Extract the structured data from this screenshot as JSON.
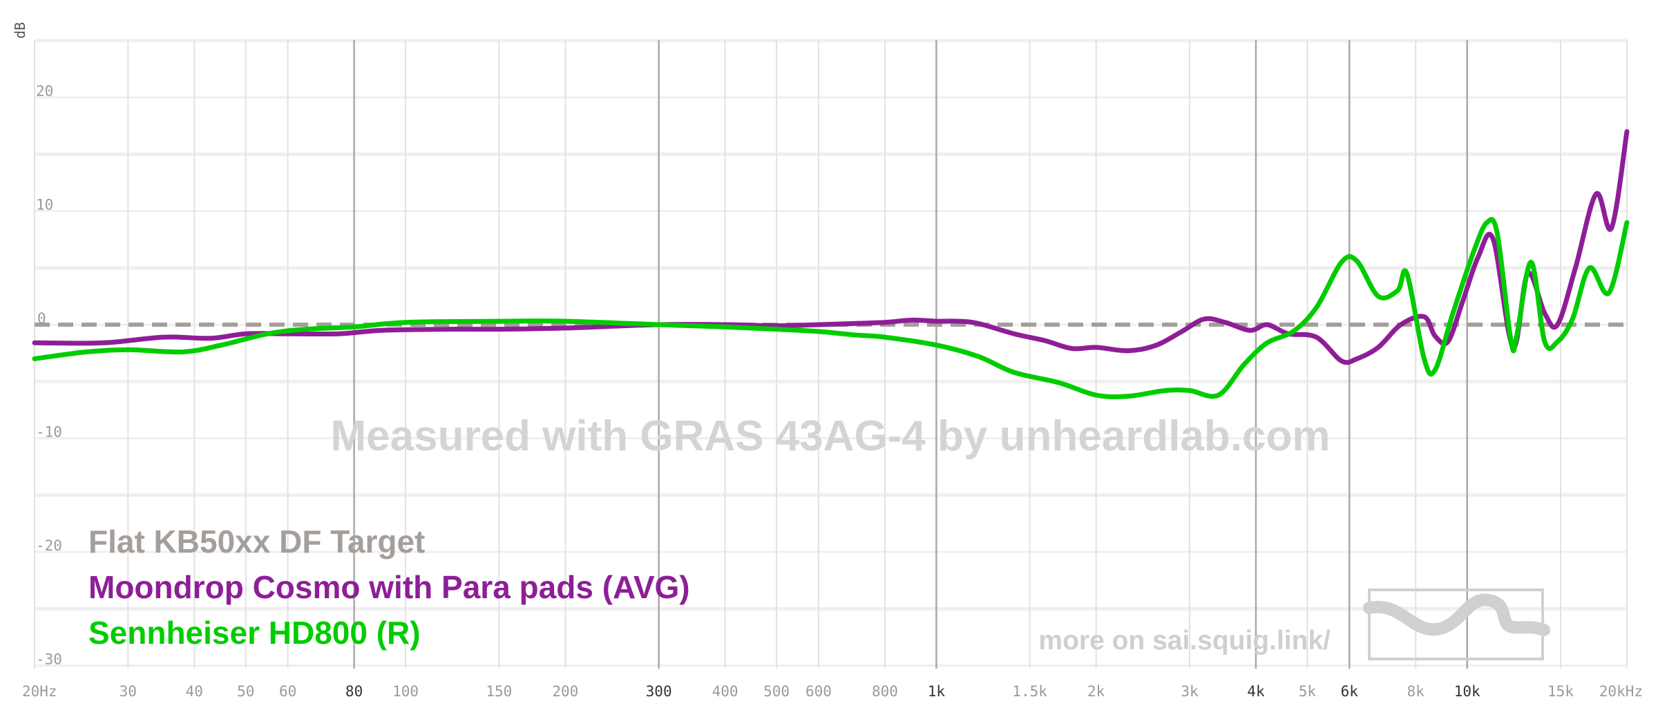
{
  "chart_data": {
    "type": "line",
    "x_scale": "log",
    "xlim": [
      20,
      20000
    ],
    "ylim": [
      -30,
      25
    ],
    "ylabel": "dB",
    "x_ticks": [
      {
        "value": 20,
        "label": "20Hz",
        "major": false
      },
      {
        "value": 30,
        "label": "30",
        "major": false
      },
      {
        "value": 40,
        "label": "40",
        "major": false
      },
      {
        "value": 50,
        "label": "50",
        "major": false
      },
      {
        "value": 60,
        "label": "60",
        "major": false
      },
      {
        "value": 80,
        "label": "80",
        "major": true
      },
      {
        "value": 100,
        "label": "100",
        "major": false
      },
      {
        "value": 150,
        "label": "150",
        "major": false
      },
      {
        "value": 200,
        "label": "200",
        "major": false
      },
      {
        "value": 300,
        "label": "300",
        "major": true
      },
      {
        "value": 400,
        "label": "400",
        "major": false
      },
      {
        "value": 500,
        "label": "500",
        "major": false
      },
      {
        "value": 600,
        "label": "600",
        "major": false
      },
      {
        "value": 800,
        "label": "800",
        "major": false
      },
      {
        "value": 1000,
        "label": "1k",
        "major": true
      },
      {
        "value": 1500,
        "label": "1.5k",
        "major": false
      },
      {
        "value": 2000,
        "label": "2k",
        "major": false
      },
      {
        "value": 3000,
        "label": "3k",
        "major": false
      },
      {
        "value": 4000,
        "label": "4k",
        "major": true
      },
      {
        "value": 5000,
        "label": "5k",
        "major": false
      },
      {
        "value": 6000,
        "label": "6k",
        "major": true
      },
      {
        "value": 8000,
        "label": "8k",
        "major": false
      },
      {
        "value": 10000,
        "label": "10k",
        "major": true
      },
      {
        "value": 15000,
        "label": "15k",
        "major": false
      },
      {
        "value": 20000,
        "label": "20kHz",
        "major": false
      }
    ],
    "y_ticks": [
      {
        "value": 20,
        "label": "20"
      },
      {
        "value": 10,
        "label": "10"
      },
      {
        "value": 0,
        "label": "0"
      },
      {
        "value": -10,
        "label": "-10"
      },
      {
        "value": -20,
        "label": "-20"
      },
      {
        "value": -30,
        "label": "-30"
      }
    ],
    "series": [
      {
        "name": "Flat KB50xx DF Target",
        "color": "#a59e9a",
        "dashed": true,
        "points": [
          [
            20,
            0
          ],
          [
            20000,
            0
          ]
        ]
      },
      {
        "name": "Moondrop Cosmo with Para pads (AVG)",
        "color": "#8e1e97",
        "dashed": false,
        "points": [
          [
            20,
            -1.6
          ],
          [
            27,
            -1.6
          ],
          [
            35,
            -1.1
          ],
          [
            43,
            -1.2
          ],
          [
            50,
            -0.8
          ],
          [
            60,
            -0.8
          ],
          [
            75,
            -0.8
          ],
          [
            90,
            -0.5
          ],
          [
            120,
            -0.4
          ],
          [
            150,
            -0.4
          ],
          [
            200,
            -0.3
          ],
          [
            300,
            0
          ],
          [
            400,
            0
          ],
          [
            500,
            -0.1
          ],
          [
            600,
            0
          ],
          [
            700,
            0.1
          ],
          [
            800,
            0.2
          ],
          [
            900,
            0.4
          ],
          [
            1000,
            0.3
          ],
          [
            1100,
            0.3
          ],
          [
            1200,
            0.1
          ],
          [
            1400,
            -0.8
          ],
          [
            1600,
            -1.4
          ],
          [
            1800,
            -2.1
          ],
          [
            2000,
            -2.0
          ],
          [
            2300,
            -2.3
          ],
          [
            2600,
            -1.8
          ],
          [
            2900,
            -0.6
          ],
          [
            3200,
            0.5
          ],
          [
            3500,
            0.2
          ],
          [
            3900,
            -0.5
          ],
          [
            4200,
            0
          ],
          [
            4600,
            -0.8
          ],
          [
            5200,
            -1.1
          ],
          [
            5800,
            -3.2
          ],
          [
            6200,
            -3.0
          ],
          [
            6800,
            -2.0
          ],
          [
            7500,
            0
          ],
          [
            8300,
            0.7
          ],
          [
            8700,
            -1.0
          ],
          [
            9200,
            -1.5
          ],
          [
            9800,
            2.0
          ],
          [
            10500,
            6.0
          ],
          [
            11200,
            7.5
          ],
          [
            12200,
            -2.0
          ],
          [
            13000,
            4.5
          ],
          [
            14000,
            1.0
          ],
          [
            14800,
            0
          ],
          [
            16000,
            5.0
          ],
          [
            17500,
            11.5
          ],
          [
            18700,
            8.5
          ],
          [
            20000,
            17.0
          ]
        ]
      },
      {
        "name": "Sennheiser HD800 (R)",
        "color": "#00cc00",
        "dashed": false,
        "points": [
          [
            20,
            -3.0
          ],
          [
            25,
            -2.4
          ],
          [
            30,
            -2.2
          ],
          [
            38,
            -2.4
          ],
          [
            45,
            -1.8
          ],
          [
            55,
            -0.8
          ],
          [
            65,
            -0.4
          ],
          [
            80,
            -0.2
          ],
          [
            100,
            0.2
          ],
          [
            150,
            0.3
          ],
          [
            200,
            0.3
          ],
          [
            300,
            0
          ],
          [
            400,
            -0.2
          ],
          [
            500,
            -0.4
          ],
          [
            600,
            -0.6
          ],
          [
            700,
            -0.9
          ],
          [
            800,
            -1.1
          ],
          [
            1000,
            -1.8
          ],
          [
            1200,
            -2.8
          ],
          [
            1400,
            -4.2
          ],
          [
            1700,
            -5.1
          ],
          [
            2000,
            -6.2
          ],
          [
            2300,
            -6.3
          ],
          [
            2700,
            -5.8
          ],
          [
            3000,
            -5.8
          ],
          [
            3400,
            -6.2
          ],
          [
            3800,
            -3.5
          ],
          [
            4200,
            -1.6
          ],
          [
            4700,
            -0.6
          ],
          [
            5200,
            1.5
          ],
          [
            5800,
            5.5
          ],
          [
            6200,
            5.6
          ],
          [
            6800,
            2.5
          ],
          [
            7400,
            3.0
          ],
          [
            7700,
            4.5
          ],
          [
            8300,
            -3.0
          ],
          [
            8700,
            -4.0
          ],
          [
            9400,
            1.0
          ],
          [
            10300,
            6.5
          ],
          [
            10900,
            9.0
          ],
          [
            11400,
            8.0
          ],
          [
            12100,
            -1.5
          ],
          [
            12400,
            -1.0
          ],
          [
            13200,
            5.5
          ],
          [
            14000,
            -1.5
          ],
          [
            14800,
            -1.5
          ],
          [
            15800,
            0.5
          ],
          [
            17000,
            5.0
          ],
          [
            18500,
            2.8
          ],
          [
            20000,
            9.0
          ]
        ]
      }
    ],
    "watermark": "Measured with GRAS 43AG-4 by unheardlab.com",
    "footer_link": "more on sai.squig.link/",
    "legend": {
      "placement": "bottom-left",
      "entries": [
        {
          "label": "Flat KB50xx DF Target",
          "color": "#a59e9a"
        },
        {
          "label": "Moondrop Cosmo with Para pads (AVG)",
          "color": "#8e1e97"
        },
        {
          "label": "Sennheiser HD800 (R)",
          "color": "#00cc00"
        }
      ]
    }
  }
}
